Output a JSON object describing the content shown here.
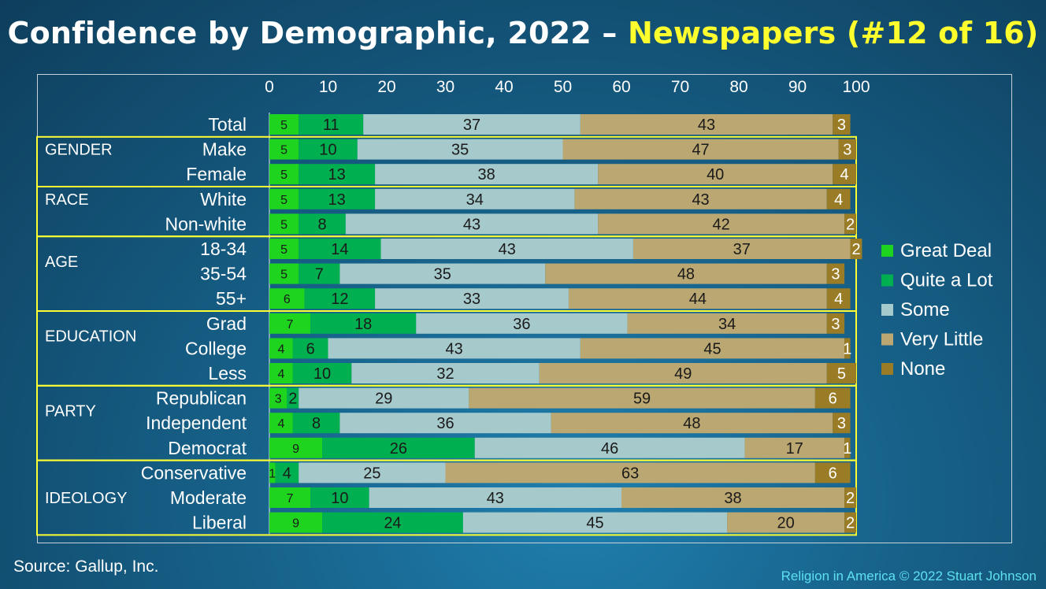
{
  "title": {
    "main": "Confidence by Demographic, 2022 – ",
    "highlight": "Newspapers (#12 of 16)"
  },
  "footer": {
    "source": "Source: Gallup, Inc.",
    "credit": "Religion in America © 2022 Stuart Johnson"
  },
  "chart_data": {
    "type": "bar",
    "orientation": "horizontal",
    "stacked": true,
    "xlim": [
      0,
      100
    ],
    "x_ticks": [
      0,
      10,
      20,
      30,
      40,
      50,
      60,
      70,
      80,
      90,
      100
    ],
    "categories": [
      "Total",
      "Make",
      "Female",
      "White",
      "Non-white",
      "18-34",
      "35-54",
      "55+",
      "Grad",
      "College",
      "Less",
      "Republican",
      "Independent",
      "Democrat",
      "Conservative",
      "Moderate",
      "Liberal"
    ],
    "groups": [
      {
        "label": "GENDER",
        "rows": [
          "Make",
          "Female"
        ]
      },
      {
        "label": "RACE",
        "rows": [
          "White",
          "Non-white"
        ]
      },
      {
        "label": "AGE",
        "rows": [
          "18-34",
          "35-54",
          "55+"
        ]
      },
      {
        "label": "EDUCATION",
        "rows": [
          "Grad",
          "College",
          "Less"
        ]
      },
      {
        "label": "PARTY",
        "rows": [
          "Republican",
          "Independent",
          "Democrat"
        ]
      },
      {
        "label": "IDEOLOGY",
        "rows": [
          "Conservative",
          "Moderate",
          "Liberal"
        ]
      }
    ],
    "series": [
      {
        "name": "Great Deal",
        "color": "#1ed41e",
        "values": [
          5,
          5,
          5,
          5,
          5,
          5,
          5,
          6,
          7,
          4,
          4,
          3,
          4,
          9,
          1,
          7,
          9
        ]
      },
      {
        "name": "Quite a Lot",
        "color": "#00b050",
        "values": [
          11,
          10,
          13,
          13,
          8,
          14,
          7,
          12,
          18,
          6,
          10,
          2,
          8,
          26,
          4,
          10,
          24
        ]
      },
      {
        "name": "Some",
        "color": "#a6c9cc",
        "values": [
          37,
          35,
          38,
          34,
          43,
          43,
          35,
          33,
          36,
          43,
          32,
          29,
          36,
          46,
          25,
          43,
          45
        ]
      },
      {
        "name": "Very Little",
        "color": "#bba771",
        "values": [
          43,
          47,
          40,
          43,
          42,
          37,
          48,
          44,
          34,
          45,
          49,
          59,
          48,
          17,
          63,
          38,
          20
        ]
      },
      {
        "name": "None",
        "color": "#9b7c26",
        "values": [
          3,
          3,
          4,
          4,
          2,
          2,
          3,
          4,
          3,
          1,
          5,
          6,
          3,
          1,
          6,
          2,
          2
        ]
      }
    ],
    "legend_position": "right",
    "colors": {
      "group_box": "#ffff33"
    }
  }
}
